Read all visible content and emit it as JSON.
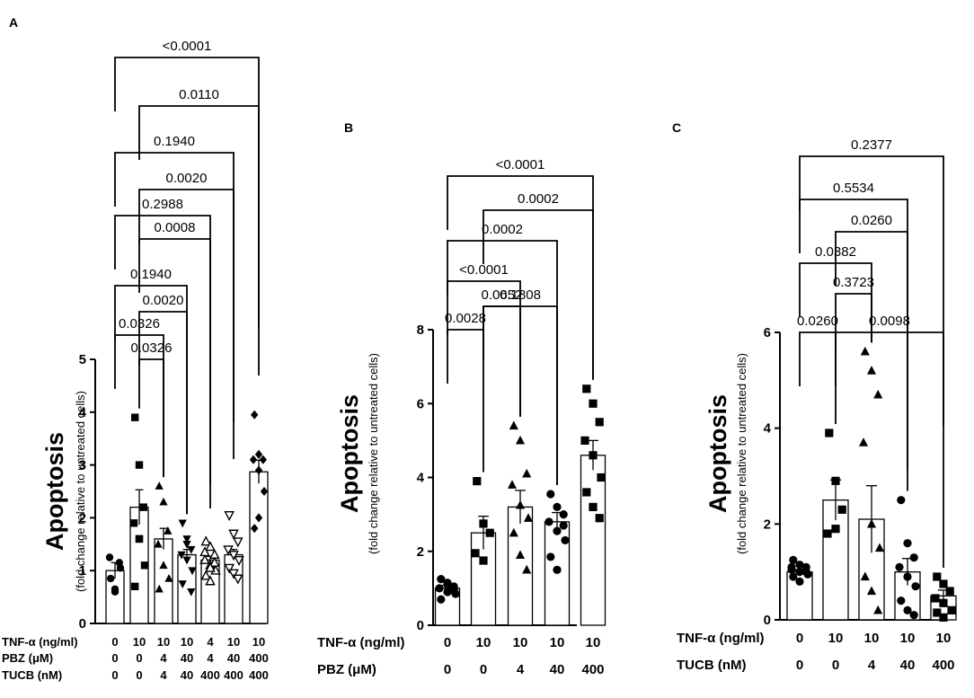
{
  "chart_data": [
    {
      "panel": "A",
      "type": "bar",
      "ylabel": "Apoptosis",
      "ylabel_sub": "(fold change relative to untreated cells)",
      "ylim": [
        0,
        5
      ],
      "yticks": [
        "0",
        "1",
        "2",
        "3",
        "4",
        "5"
      ],
      "condition_rows": [
        {
          "label": "TNF-α (ng/ml)",
          "values": [
            "0",
            "10",
            "10",
            "10",
            "4",
            "10",
            "10"
          ]
        },
        {
          "label": "PBZ (μM)",
          "values": [
            "0",
            "0",
            "4",
            "40",
            "4",
            "40",
            "400"
          ]
        },
        {
          "label": "TUCB (nM)",
          "values": [
            "0",
            "0",
            "4",
            "40",
            "400",
            "400",
            "400"
          ]
        }
      ],
      "values": [
        1.0,
        2.2,
        1.6,
        1.3,
        1.2,
        1.3,
        2.87
      ],
      "errors": [
        0.15,
        0.33,
        0.2,
        0.1,
        0.07,
        0.1,
        0.22
      ],
      "points": [
        [
          0.85,
          0.6,
          1.15,
          1.25,
          0.65,
          1.05
        ],
        [
          3.9,
          3.0,
          2.2,
          1.9,
          1.6,
          1.1,
          0.7,
          1.6
        ],
        [
          2.6,
          2.3,
          1.75,
          1.5,
          1.1,
          0.85,
          0.65
        ],
        [
          1.9,
          1.6,
          1.4,
          1.3,
          1.2,
          1.0,
          0.75,
          1.5,
          0.6
        ],
        [
          1.55,
          1.45,
          1.3,
          1.2,
          1.1,
          1.0,
          0.9,
          0.8,
          1.15,
          1.35,
          1.05
        ],
        [
          2.05,
          1.7,
          1.55,
          1.4,
          1.3,
          1.2,
          1.05,
          0.95,
          0.85
        ],
        [
          3.95,
          3.2,
          3.1,
          3.1,
          2.9,
          2.5,
          1.8,
          2.0
        ]
      ],
      "markers": [
        "circle",
        "square",
        "triangle",
        "triangle-down",
        "triangle-open",
        "triangle-down-open",
        "diamond"
      ],
      "comparisons": [
        {
          "from": 1,
          "to": 2,
          "p": "0.0326"
        },
        {
          "from": 0,
          "to": 2,
          "p": "0.0326"
        },
        {
          "from": 1,
          "to": 3,
          "p": "0.0020"
        },
        {
          "from": 0,
          "to": 3,
          "p": "0.1940"
        },
        {
          "from": 1,
          "to": 4,
          "p": "0.0008"
        },
        {
          "from": 0,
          "to": 4,
          "p": "0.2988"
        },
        {
          "from": 1,
          "to": 5,
          "p": "0.0020"
        },
        {
          "from": 0,
          "to": 5,
          "p": "0.1940"
        },
        {
          "from": 1,
          "to": 6,
          "p": "0.0110"
        },
        {
          "from": 0,
          "to": 6,
          "p": "<0.0001"
        }
      ]
    },
    {
      "panel": "B",
      "type": "bar",
      "ylabel": "Apoptosis",
      "ylabel_sub": "(fold change relative to untreated cells)",
      "ylim": [
        0,
        8
      ],
      "yticks": [
        "0",
        "2",
        "4",
        "6",
        "8"
      ],
      "condition_rows": [
        {
          "label": "TNF-α (ng/ml)",
          "values": [
            "0",
            "10",
            "10",
            "10",
            "10"
          ]
        },
        {
          "label": "PBZ (μM)",
          "values": [
            "0",
            "0",
            "4",
            "40",
            "400"
          ]
        }
      ],
      "values": [
        1.0,
        2.5,
        3.2,
        2.8,
        4.6
      ],
      "errors": [
        0.08,
        0.45,
        0.45,
        0.25,
        0.4
      ],
      "points": [
        [
          1.25,
          1.15,
          1.05,
          1.0,
          0.9,
          0.85,
          0.7,
          1.1,
          0.95
        ],
        [
          3.9,
          2.75,
          2.5,
          1.95,
          1.75
        ],
        [
          5.4,
          5.0,
          4.1,
          3.8,
          3.25,
          2.9,
          2.5,
          1.9,
          1.5
        ],
        [
          3.55,
          3.2,
          3.0,
          2.8,
          2.55,
          2.3,
          1.85,
          1.5,
          2.7
        ],
        [
          6.4,
          6.0,
          5.5,
          5.0,
          4.6,
          4.0,
          3.6,
          3.2,
          2.9
        ]
      ],
      "markers": [
        "circle",
        "square",
        "triangle",
        "circle",
        "square"
      ],
      "comparisons": [
        {
          "from": 0,
          "to": 1,
          "p": "0.0028"
        },
        {
          "from": 1,
          "to": 3,
          "p": "0.1808"
        },
        {
          "from": 1,
          "to": 2,
          "p": "0.0652"
        },
        {
          "from": 0,
          "to": 2,
          "p": "<0.0001"
        },
        {
          "from": 0,
          "to": 3,
          "p": "0.0002"
        },
        {
          "from": 1,
          "to": 4,
          "p": "0.0002"
        },
        {
          "from": 0,
          "to": 4,
          "p": "<0.0001"
        }
      ]
    },
    {
      "panel": "C",
      "type": "bar",
      "ylabel": "Apoptosis",
      "ylabel_sub": "(fold change relative to untreated cells)",
      "ylim": [
        0,
        6
      ],
      "yticks": [
        "0",
        "2",
        "4",
        "6"
      ],
      "condition_rows": [
        {
          "label": "TNF-α (ng/ml)",
          "values": [
            "0",
            "10",
            "10",
            "10",
            "10"
          ]
        },
        {
          "label": "TUCB (nM)",
          "values": [
            "0",
            "0",
            "4",
            "40",
            "400"
          ]
        }
      ],
      "values": [
        1.0,
        2.5,
        2.1,
        1.0,
        0.5
      ],
      "errors": [
        0.05,
        0.42,
        0.7,
        0.28,
        0.12
      ],
      "points": [
        [
          1.25,
          1.15,
          1.1,
          1.05,
          1.0,
          0.95,
          0.9,
          0.8,
          1.0,
          1.1
        ],
        [
          3.9,
          2.9,
          2.3,
          1.8,
          1.9
        ],
        [
          5.6,
          5.2,
          4.7,
          3.7,
          2.0,
          1.5,
          0.9,
          0.6,
          0.2
        ],
        [
          2.5,
          1.6,
          1.3,
          1.1,
          0.9,
          0.7,
          0.4,
          0.2,
          0.1
        ],
        [
          0.9,
          0.75,
          0.6,
          0.45,
          0.35,
          0.2,
          0.15,
          0.05
        ]
      ],
      "markers": [
        "circle",
        "square",
        "triangle",
        "circle",
        "square"
      ],
      "comparisons": [
        {
          "from": 0,
          "to": 1,
          "p": "0.0260"
        },
        {
          "from": 1,
          "to": 4,
          "p": "0.0098"
        },
        {
          "from": 1,
          "to": 2,
          "p": "0.3723"
        },
        {
          "from": 0,
          "to": 2,
          "p": "0.0382"
        },
        {
          "from": 1,
          "to": 3,
          "p": "0.0260"
        },
        {
          "from": 0,
          "to": 3,
          "p": "0.5534"
        },
        {
          "from": 0,
          "to": 4,
          "p": "0.2377"
        }
      ]
    }
  ]
}
